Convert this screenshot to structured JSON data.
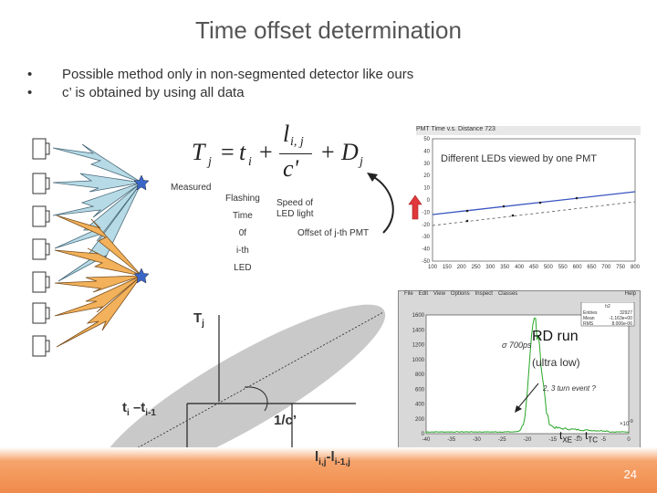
{
  "title": "Time offset determination",
  "bullets": [
    "Possible method only in non-segmented detector like ours",
    "c’ is obtained by using all data"
  ],
  "formula": {
    "lhs": "T",
    "lhs_sub": "j",
    "eq": "=",
    "t": "t",
    "t_sub": "i",
    "plus1": "+",
    "num": "l",
    "num_sub": "i, j",
    "den": "c'",
    "plus2": "+",
    "D": "D",
    "D_sub": "j"
  },
  "labels": {
    "measured": "Measured",
    "flashing": [
      "Flashing",
      "Time",
      "0f",
      "i-th",
      "LED"
    ],
    "speed": [
      "Speed of",
      "LED light"
    ],
    "offset": "Offset of j-th PMT",
    "different_leds": "Different LEDs viewed by one PMT",
    "tj": "T",
    "tj_sub": "j",
    "ti_diff": "t",
    "ti_diff_sub1": "i",
    "ti_diff_mid": " –t",
    "ti_diff_sub2": "i-1",
    "inv_c": "1/c’",
    "l_diff": "l",
    "l_diff_sub1": "i,j",
    "l_diff_mid": "-l",
    "l_diff_sub2": "i-1,j",
    "rd_run": "RD run",
    "ultra_low": "(ultra low)",
    "txe": "t",
    "txe_sub": "XE",
    "minus": "-",
    "ttc": "t",
    "ttc_sub": "TC"
  },
  "plot1": {
    "title": "PMT Time v.s. Distance 723",
    "y_ticks": [
      "50",
      "40",
      "30",
      "20",
      "10",
      "0",
      "-10",
      "-20",
      "-30",
      "-40",
      "-50"
    ],
    "x_ticks": [
      "100",
      "150",
      "200",
      "250",
      "300",
      "350",
      "400",
      "450",
      "500",
      "550",
      "600",
      "650",
      "700",
      "750",
      "800"
    ]
  },
  "plot2": {
    "menu": [
      "File",
      "Edit",
      "View",
      "Options",
      "Inspect",
      "Classes"
    ],
    "help": "Help",
    "stats_title": "h2",
    "stats": [
      [
        "Entries",
        "32927"
      ],
      [
        "Mean",
        "-1.163e+00"
      ],
      [
        "RMS",
        "8.006e-06"
      ]
    ],
    "annotation_sigma": "σ 700ps",
    "annotation_event": "2, 3 turn event ?",
    "y_ticks": [
      "1600",
      "1400",
      "1200",
      "1000",
      "800",
      "600",
      "400",
      "200",
      "0"
    ],
    "x_ticks": [
      "-40",
      "-35",
      "-30",
      "-25",
      "-20",
      "-15",
      "-10",
      "-5",
      "0"
    ],
    "x_unit": "×10",
    "x_exp": "-9"
  },
  "page_number": "24",
  "colors": {
    "ellipse": "#c9c9c9",
    "lightning_blue": "#b7dbe6",
    "lightning_orange": "#f2b15a",
    "star": "#3a66c8",
    "fit_line": "#3a55c0",
    "arrow": "#e0383b",
    "footer": "#f08a4b",
    "hist": "#26a626"
  }
}
